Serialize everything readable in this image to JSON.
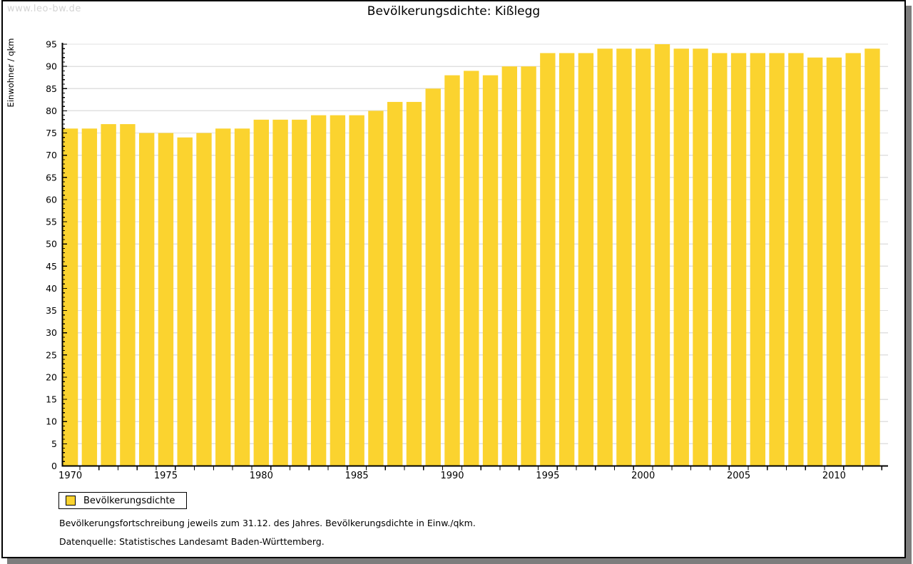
{
  "page": {
    "watermark": "www.leo-bw.de",
    "title": "Bevölkerungsdichte: Kißlegg"
  },
  "chart_data": {
    "type": "bar",
    "title": "Bevölkerungsdichte: Kißlegg",
    "xlabel": "",
    "ylabel": "Einwohner / qkm",
    "ylim": [
      0,
      95
    ],
    "ytick_step": 5,
    "y_minor_step": 1,
    "x_labeled_years": [
      1970,
      1975,
      1980,
      1985,
      1990,
      1995,
      2000,
      2005,
      2010
    ],
    "grid": true,
    "legend_position": "bottom-left",
    "bar_color": "#FBD32F",
    "grid_color": "#E0E0E0",
    "series_name": "Bevölkerungsdichte",
    "categories": [
      1970,
      1971,
      1972,
      1973,
      1974,
      1975,
      1976,
      1977,
      1978,
      1979,
      1980,
      1981,
      1982,
      1983,
      1984,
      1985,
      1986,
      1987,
      1988,
      1989,
      1990,
      1991,
      1992,
      1993,
      1994,
      1995,
      1996,
      1997,
      1998,
      1999,
      2000,
      2001,
      2002,
      2003,
      2004,
      2005,
      2006,
      2007,
      2008,
      2009,
      2010,
      2011,
      2012
    ],
    "values": [
      76,
      76,
      77,
      77,
      75,
      75,
      74,
      75,
      76,
      76,
      78,
      78,
      78,
      79,
      79,
      79,
      80,
      82,
      82,
      85,
      88,
      89,
      88,
      90,
      90,
      93,
      93,
      93,
      94,
      94,
      94,
      95,
      94,
      94,
      93,
      93,
      93,
      93,
      93,
      92,
      92,
      93,
      94
    ]
  },
  "legend": {
    "label": "Bevölkerungsdichte",
    "swatch_color": "#FBD32F"
  },
  "footnotes": [
    "Bevölkerungsfortschreibung jeweils zum 31.12. des Jahres. Bevölkerungsdichte in Einw./qkm.",
    "Datenquelle: Statistisches Landesamt Baden-Württemberg."
  ]
}
